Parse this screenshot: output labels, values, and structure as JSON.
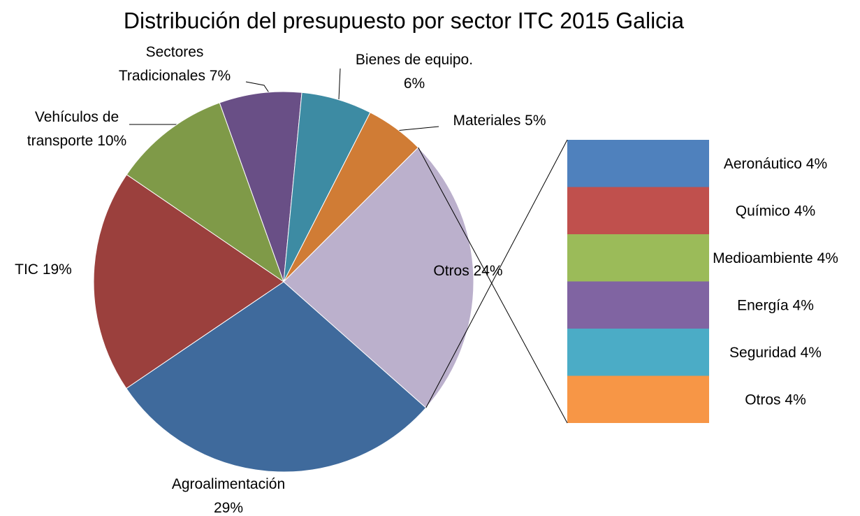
{
  "chart_data": {
    "type": "pie-of-bar",
    "title": "Distribución del presupuesto por sector ITC 2015 Galicia",
    "categories": [
      "Agroalimentación",
      "TIC",
      "Vehículos de transporte",
      "Sectores Tradicionales",
      "Bienes de equipo.",
      "Materiales",
      "Otros"
    ],
    "values": [
      29,
      19,
      10,
      7,
      6,
      5,
      24
    ],
    "value_labels": [
      "29%",
      "19%",
      "10%",
      "7%",
      "6%",
      "5%",
      "24%"
    ],
    "colors": [
      "#3f6a9c",
      "#9b403d",
      "#7f9a48",
      "#694f86",
      "#3d8ba3",
      "#d07c35",
      "#bbb0cc"
    ],
    "bar": {
      "categories": [
        "Aeronáutico",
        "Químico",
        "Medioambiente",
        "Energía",
        "Seguridad",
        "Otros"
      ],
      "values": [
        4,
        4,
        4,
        4,
        4,
        4
      ],
      "value_labels": [
        "4%",
        "4%",
        "4%",
        "4%",
        "4%",
        "4%"
      ],
      "colors": [
        "#4f81bd",
        "#c0504d",
        "#9bbb59",
        "#8064a2",
        "#4bacc6",
        "#f79646"
      ]
    }
  }
}
